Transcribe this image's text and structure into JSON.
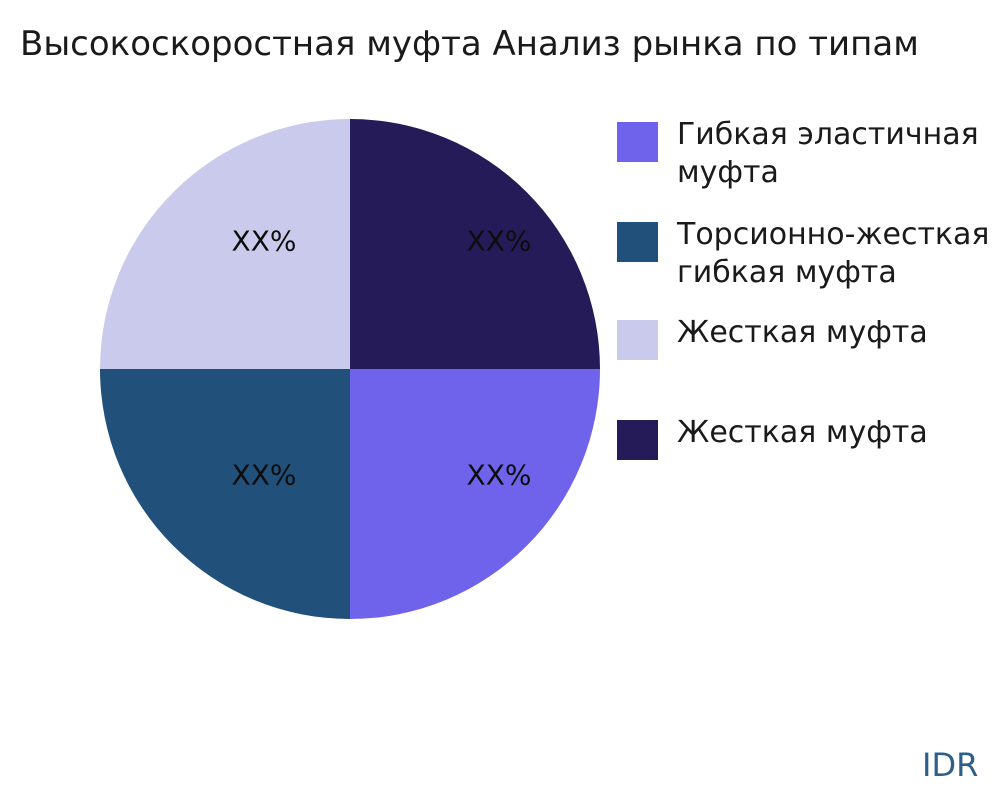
{
  "watermark": "IDR",
  "colors": {
    "background": "#ffffff",
    "title_text": "#1a1a1a",
    "percent_label_text": "#0d0d0d",
    "watermark_text": "#2e5f8a"
  },
  "chart_data": {
    "type": "pie",
    "title": "Высокоскоростная муфта Анализ рынка по типам",
    "start_angle_deg": 0,
    "direction": "clockwise",
    "legend_position": "right",
    "values_shown_as": "XX%",
    "slices": [
      {
        "label": "Гибкая эластичная муфта",
        "value": 25,
        "pct_label": "XX%",
        "color": "#6F63EB"
      },
      {
        "label": "Торсионно-жесткая гибкая муфта",
        "value": 25,
        "pct_label": "XX%",
        "color": "#21507B"
      },
      {
        "label": "Жесткая муфта",
        "value": 25,
        "pct_label": "XX%",
        "color": "#CACBEC"
      },
      {
        "label": "Жесткая муфта",
        "value": 25,
        "pct_label": "XX%",
        "color": "#251B59"
      }
    ]
  }
}
